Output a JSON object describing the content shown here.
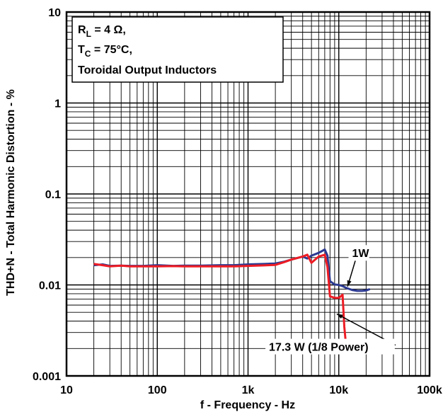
{
  "chart_data": {
    "type": "line",
    "x_scale": "log",
    "y_scale": "log",
    "xlim": [
      10,
      100000
    ],
    "ylim": [
      0.001,
      10
    ],
    "grid": true,
    "xlabel": "f - Frequency - Hz",
    "ylabel": "THD+N - Total Harmonic Distortion - %",
    "x_ticks": [
      {
        "value": 10,
        "label": "10"
      },
      {
        "value": 100,
        "label": "100"
      },
      {
        "value": 1000,
        "label": "1k"
      },
      {
        "value": 10000,
        "label": "10k"
      },
      {
        "value": 100000,
        "label": "100k"
      }
    ],
    "y_ticks": [
      {
        "value": 0.001,
        "label": "0.001"
      },
      {
        "value": 0.01,
        "label": "0.01"
      },
      {
        "value": 0.1,
        "label": "0.1"
      },
      {
        "value": 1,
        "label": "1"
      },
      {
        "value": 10,
        "label": "10"
      }
    ],
    "conditions": {
      "line1_main": "R",
      "line1_sub": "L",
      "line1_rest": " = 4 Ω,",
      "line2_main": "T",
      "line2_sub": "C",
      "line2_rest": " = 75°C,",
      "line3": "Toroidal Output Inductors"
    },
    "series": [
      {
        "name": "1W",
        "color": "#2b3990",
        "x": [
          20,
          25,
          30,
          40,
          50,
          70,
          100,
          150,
          200,
          300,
          500,
          700,
          1000,
          1500,
          2000,
          2500,
          3000,
          4000,
          4500,
          5000,
          6000,
          7000,
          7500,
          8000,
          9000,
          10000,
          11000,
          12000,
          14000,
          16000,
          18000,
          20000,
          22000
        ],
        "y": [
          0.0165,
          0.0168,
          0.0162,
          0.0163,
          0.0162,
          0.0162,
          0.0165,
          0.0162,
          0.0163,
          0.0163,
          0.0165,
          0.0165,
          0.0168,
          0.017,
          0.0172,
          0.018,
          0.019,
          0.0205,
          0.0195,
          0.021,
          0.0225,
          0.0245,
          0.021,
          0.011,
          0.0101,
          0.01,
          0.0097,
          0.0093,
          0.0088,
          0.0086,
          0.0086,
          0.0087,
          0.009
        ]
      },
      {
        "name": "17.3 W (1/8 Power)",
        "color": "#ed1c24",
        "x": [
          20,
          25,
          30,
          40,
          50,
          70,
          100,
          150,
          200,
          300,
          500,
          700,
          1000,
          1500,
          2000,
          2500,
          3000,
          4000,
          4500,
          5000,
          6000,
          7000,
          7500,
          8000,
          9000,
          10000,
          11000,
          11500,
          12000,
          13000,
          15000,
          17000,
          19000,
          21000,
          22000
        ],
        "y": [
          0.017,
          0.0165,
          0.016,
          0.0163,
          0.016,
          0.016,
          0.016,
          0.0161,
          0.016,
          0.016,
          0.016,
          0.016,
          0.0162,
          0.0164,
          0.0166,
          0.0178,
          0.019,
          0.0205,
          0.0215,
          0.0175,
          0.0205,
          0.0215,
          0.0158,
          0.0075,
          0.0072,
          0.0072,
          0.0078,
          0.0035,
          0.0022,
          0.0021,
          0.002,
          0.002,
          0.0021,
          0.0022,
          0.0024
        ]
      }
    ],
    "annotations": [
      {
        "text": "1W",
        "series": 0,
        "label_at": [
          14000,
          0.0225
        ],
        "arrow_to": [
          12500,
          0.0096
        ]
      },
      {
        "text": "17.3 W (1/8 Power)",
        "series": 1,
        "label_at": [
          1700,
          0.0021
        ],
        "arrow_to": [
          9500,
          0.0048
        ]
      }
    ]
  }
}
